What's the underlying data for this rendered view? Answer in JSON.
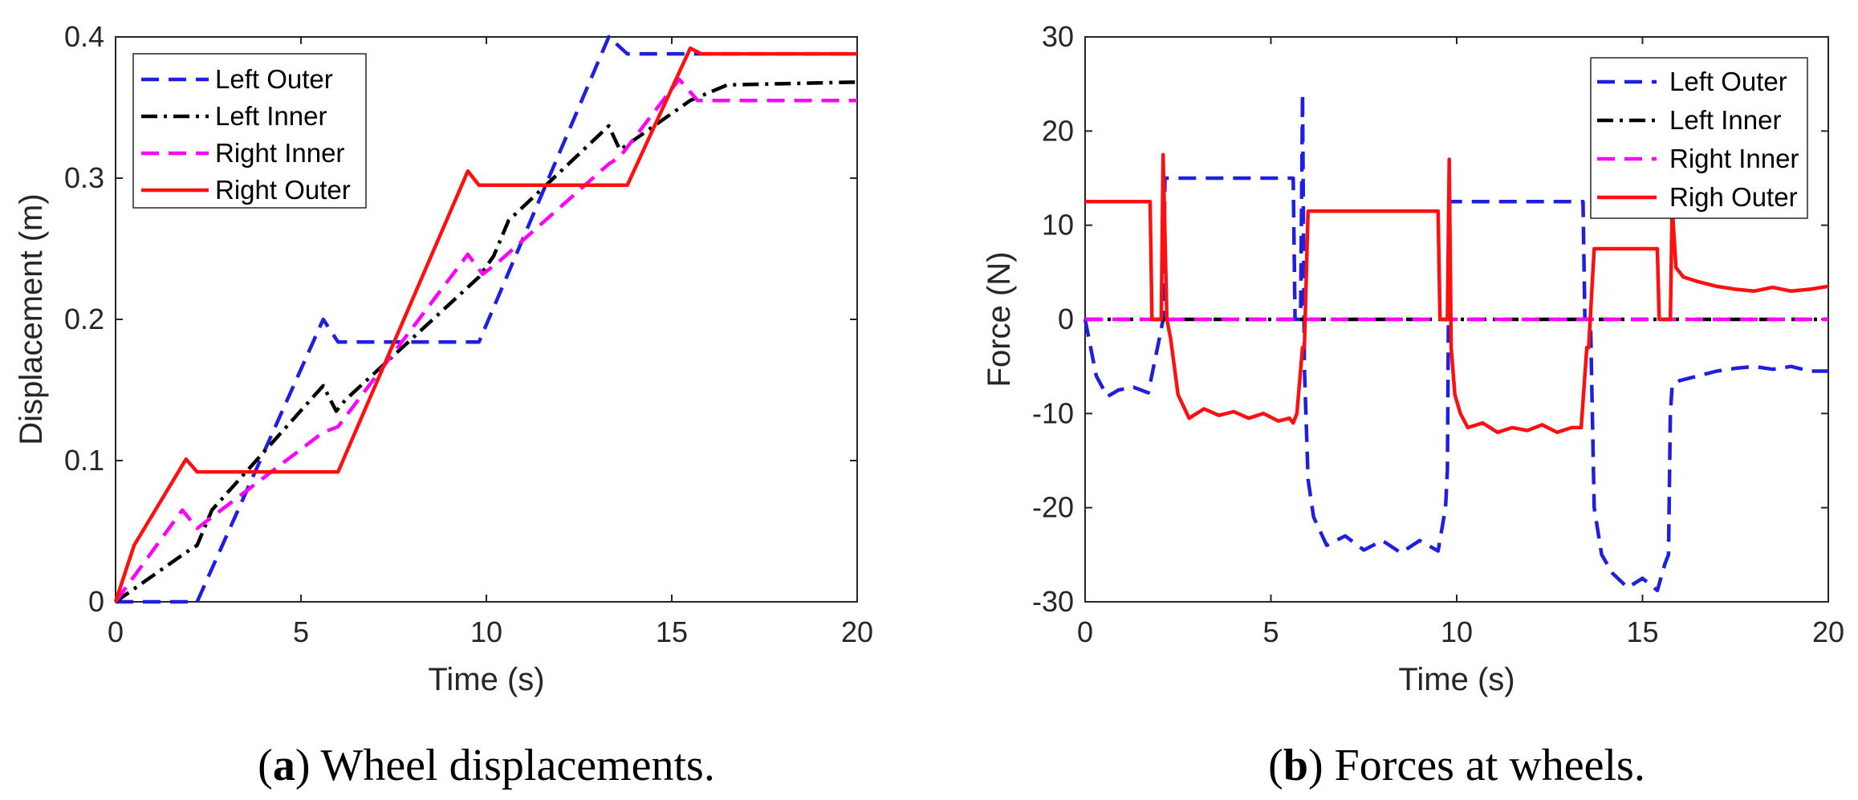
{
  "chart_data": [
    {
      "type": "line",
      "caption_letter": "a",
      "caption_text": " Wheel displacements.",
      "xlabel": "Time (s)",
      "ylabel": "Displacement (m)",
      "xlim": [
        0,
        20
      ],
      "ylim": [
        0,
        0.4
      ],
      "xticks": [
        "0",
        "5",
        "10",
        "15",
        "20"
      ],
      "yticks": [
        "0",
        "0.1",
        "0.2",
        "0.3",
        "0.4"
      ],
      "grid": false,
      "legend_position": "top-left",
      "series": [
        {
          "name": "Left Outer",
          "color": "#1f1fe0",
          "style": "dashed",
          "x": [
            0,
            2.2,
            5.6,
            6.0,
            9.8,
            13.3,
            13.8,
            20
          ],
          "y": [
            0,
            0,
            0.2,
            0.184,
            0.184,
            0.4,
            0.388,
            0.388
          ]
        },
        {
          "name": "Left Inner",
          "color": "#000000",
          "style": "dashdot",
          "x": [
            0,
            1.9,
            2.2,
            2.6,
            5.6,
            5.95,
            6.2,
            9.8,
            10.2,
            10.6,
            13.3,
            13.6,
            15.5,
            16.5,
            20
          ],
          "y": [
            0,
            0.035,
            0.04,
            0.065,
            0.153,
            0.135,
            0.143,
            0.23,
            0.245,
            0.27,
            0.337,
            0.32,
            0.355,
            0.366,
            0.368
          ]
        },
        {
          "name": "Right Inner",
          "color": "#ff00ff",
          "style": "dashed",
          "x": [
            0,
            1.8,
            2.2,
            2.6,
            5.6,
            6.0,
            9.5,
            9.9,
            10.3,
            13.3,
            13.6,
            15.2,
            15.7,
            20
          ],
          "y": [
            0,
            0.065,
            0.052,
            0.06,
            0.12,
            0.124,
            0.246,
            0.232,
            0.24,
            0.31,
            0.315,
            0.37,
            0.355,
            0.355
          ]
        },
        {
          "name": "Right Outer",
          "color": "#ff1010",
          "style": "solid",
          "x": [
            0,
            0.5,
            1.9,
            2.2,
            6.0,
            9.5,
            9.8,
            13.8,
            15.5,
            15.8,
            20
          ],
          "y": [
            0,
            0.04,
            0.101,
            0.092,
            0.092,
            0.305,
            0.295,
            0.295,
            0.392,
            0.388,
            0.388
          ]
        }
      ]
    },
    {
      "type": "line",
      "caption_letter": "b",
      "caption_text": " Forces at wheels.",
      "xlabel": "Time (s)",
      "ylabel": "Force (N)",
      "xlim": [
        0,
        20
      ],
      "ylim": [
        -30,
        30
      ],
      "xticks": [
        "0",
        "5",
        "10",
        "15",
        "20"
      ],
      "yticks": [
        "-30",
        "-20",
        "-10",
        "0",
        "10",
        "20",
        "30"
      ],
      "grid": false,
      "legend_position": "top-right",
      "series": [
        {
          "name": "Left Outer",
          "color": "#1f1fe0",
          "style": "dashed",
          "x": [
            0,
            0.3,
            0.6,
            0.9,
            1.3,
            1.7,
            2.0,
            2.1,
            2.15,
            5.6,
            5.65,
            5.8,
            5.85,
            5.9,
            6.0,
            6.15,
            6.5,
            7.0,
            7.5,
            8.0,
            8.5,
            9.0,
            9.5,
            9.7,
            9.75,
            9.8,
            13.4,
            13.45,
            13.6,
            13.7,
            13.9,
            14.2,
            14.6,
            15.0,
            15.4,
            15.6,
            15.7,
            15.75,
            15.8,
            16.0,
            16.5,
            17.0,
            17.5,
            18.0,
            18.5,
            19.0,
            19.5,
            20
          ],
          "y": [
            0,
            -6,
            -8.2,
            -7.5,
            -7.2,
            -7.8,
            -2,
            0,
            15,
            15,
            0,
            0,
            24,
            -5,
            -17,
            -21,
            -24,
            -23,
            -24.5,
            -23.5,
            -24.8,
            -23.5,
            -24.6,
            -20,
            -16,
            12.5,
            12.5,
            0,
            0,
            -20,
            -25,
            -27,
            -28.5,
            -27.5,
            -28.8,
            -26,
            -25,
            -10,
            -7,
            -6.5,
            -6,
            -5.5,
            -5.2,
            -5,
            -5.3,
            -5,
            -5.5,
            -5.5
          ]
        },
        {
          "name": "Left Inner",
          "color": "#000000",
          "style": "dashdot",
          "x": [
            0,
            20
          ],
          "y": [
            0,
            0
          ]
        },
        {
          "name": "Right Inner",
          "color": "#ff00ff",
          "style": "dashed",
          "x": [
            0,
            20
          ],
          "y": [
            0,
            0
          ]
        },
        {
          "name": "Righ Outer",
          "color": "#ff1010",
          "style": "solid",
          "x": [
            0,
            1.75,
            1.8,
            2.05,
            2.1,
            2.2,
            2.3,
            2.5,
            2.8,
            3.2,
            3.6,
            4.0,
            4.4,
            4.8,
            5.2,
            5.5,
            5.6,
            5.7,
            5.85,
            5.9,
            6.0,
            9.5,
            9.55,
            9.75,
            9.8,
            9.85,
            9.95,
            10.1,
            10.3,
            10.7,
            11.1,
            11.5,
            11.9,
            12.3,
            12.7,
            13.1,
            13.35,
            13.5,
            13.55,
            13.7,
            15.4,
            15.45,
            15.75,
            15.8,
            15.9,
            16.1,
            16.5,
            17.0,
            17.5,
            18.0,
            18.5,
            19.0,
            19.5,
            20
          ],
          "y": [
            12.5,
            12.5,
            0,
            0,
            17.5,
            0,
            -2,
            -8,
            -10.5,
            -9.5,
            -10.2,
            -9.8,
            -10.5,
            -10,
            -10.8,
            -10.5,
            -11,
            -10,
            -3,
            -3,
            11.5,
            11.5,
            0,
            0,
            17,
            -3,
            -8,
            -10,
            -11.5,
            -11,
            -12,
            -11.5,
            -11.8,
            -11.2,
            -12,
            -11.5,
            -11.5,
            -3,
            -3,
            7.5,
            7.5,
            0,
            0,
            12,
            5.5,
            4.5,
            4,
            3.5,
            3.2,
            3,
            3.4,
            3,
            3.2,
            3.5
          ]
        }
      ]
    }
  ]
}
